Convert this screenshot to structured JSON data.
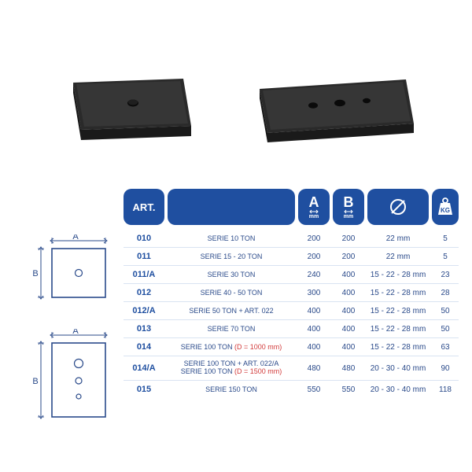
{
  "colors": {
    "brand": "#1f4fa0",
    "text": "#2a4a8a",
    "red": "#d23b3b",
    "rule": "#d9e3f2",
    "plate_dark": "#2a2a2a",
    "plate_mid": "#3a3a3a",
    "plate_light": "#4a4a4a",
    "diagram_stroke": "#2a4a8a",
    "background": "#ffffff"
  },
  "header": {
    "art": "ART.",
    "A": "A",
    "A_unit": "mm",
    "B": "B",
    "B_unit": "mm"
  },
  "rows": [
    {
      "art": "010",
      "desc": "SERIE 10 TON",
      "a": "200",
      "b": "200",
      "dia": "22 mm",
      "kg": "5"
    },
    {
      "art": "011",
      "desc": "SERIE 15 - 20 TON",
      "a": "200",
      "b": "200",
      "dia": "22 mm",
      "kg": "5"
    },
    {
      "art": "011/A",
      "desc": "SERIE 30 TON",
      "a": "240",
      "b": "400",
      "dia": "15 - 22 - 28 mm",
      "kg": "23"
    },
    {
      "art": "012",
      "desc": "SERIE 40 - 50 TON",
      "a": "300",
      "b": "400",
      "dia": "15 - 22 - 28 mm",
      "kg": "28"
    },
    {
      "art": "012/A",
      "desc": "SERIE 50 TON + ART. 022",
      "a": "400",
      "b": "400",
      "dia": "15 - 22 - 28 mm",
      "kg": "50"
    },
    {
      "art": "013",
      "desc": "SERIE 70 TON",
      "a": "400",
      "b": "400",
      "dia": "15 - 22 - 28 mm",
      "kg": "50"
    },
    {
      "art": "014",
      "desc": "SERIE 100 TON <span class=\"red\">(D = 1000 mm)</span>",
      "a": "400",
      "b": "400",
      "dia": "15 - 22 - 28 mm",
      "kg": "63"
    },
    {
      "art": "014/A",
      "desc": "SERIE 100 TON + ART. 022/A<br>SERIE 100 TON <span class=\"red\">(D = 1500 mm)</span>",
      "a": "480",
      "b": "480",
      "dia": "20 - 30 - 40 mm",
      "kg": "90",
      "tall": true
    },
    {
      "art": "015",
      "desc": "SERIE 150 TON",
      "a": "550",
      "b": "550",
      "dia": "20 - 30 - 40 mm",
      "kg": "118"
    }
  ],
  "diagram": {
    "A_label": "A",
    "B_label": "B"
  }
}
